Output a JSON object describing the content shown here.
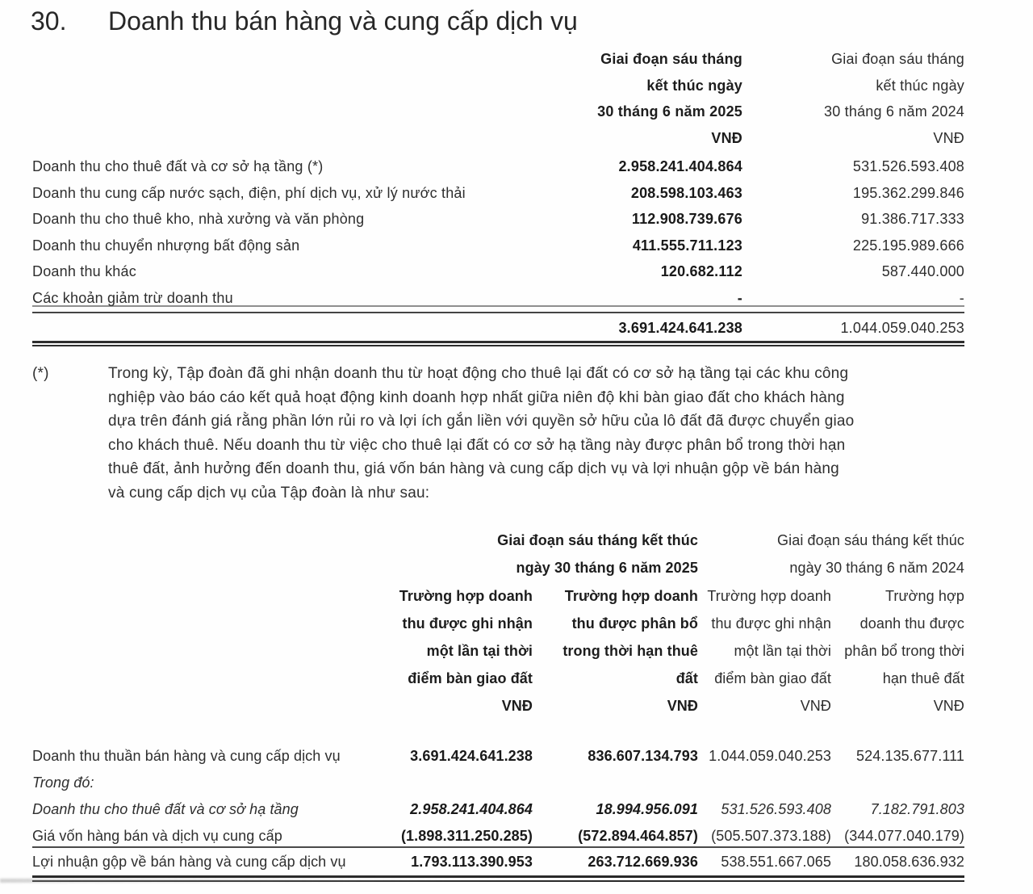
{
  "heading": {
    "number": "30.",
    "title": "Doanh thu bán hàng và cung cấp dịch vụ"
  },
  "table1": {
    "header": {
      "y2025": {
        "lines": [
          "Giai đoạn sáu tháng",
          "kết thúc ngày",
          "30 tháng 6 năm 2025",
          "VNĐ"
        ]
      },
      "y2024": {
        "lines": [
          "Giai đoạn sáu tháng",
          "kết thúc ngày",
          "30 tháng 6 năm 2024",
          "VNĐ"
        ]
      }
    },
    "rows": [
      {
        "label": "Doanh thu cho thuê đất và cơ sở hạ tầng (*)",
        "v2025": "2.958.241.404.864",
        "v2024": "531.526.593.408"
      },
      {
        "label": "Doanh thu cung cấp nước sạch, điện, phí dịch vụ, xử lý nước thải",
        "v2025": "208.598.103.463",
        "v2024": "195.362.299.846"
      },
      {
        "label": "Doanh thu cho thuê kho, nhà xưởng và văn phòng",
        "v2025": "112.908.739.676",
        "v2024": "91.386.717.333"
      },
      {
        "label": "Doanh thu chuyển nhượng bất động sản",
        "v2025": "411.555.711.123",
        "v2024": "225.195.989.666"
      },
      {
        "label": "Doanh thu khác",
        "v2025": "120.682.112",
        "v2024": "587.440.000"
      },
      {
        "label": "Các khoản giảm trừ doanh thu",
        "v2025": "-",
        "v2024": "-"
      }
    ],
    "total": {
      "v2025": "3.691.424.641.238",
      "v2024": "1.044.059.040.253"
    }
  },
  "footnote": {
    "marker": "(*)",
    "lines": [
      "Trong kỳ, Tập đoàn đã ghi nhận doanh thu từ hoạt động cho thuê lại đất có cơ sở hạ tầng tại các khu công",
      "nghiệp vào báo cáo kết quả hoạt động kinh doanh hợp nhất giữa niên độ khi bàn giao đất cho khách hàng",
      "dựa trên đánh giá rằng phần lớn rủi ro và lợi ích gắn liền với quyền sở hữu của lô đất đã được chuyển giao",
      "cho khách thuê. Nếu doanh thu từ việc cho thuê lại đất có cơ sở hạ tầng này được phân bổ trong thời hạn",
      "thuê đất, ảnh hưởng đến doanh thu, giá vốn bán hàng và cung cấp dịch vụ và lợi nhuận gộp về bán hàng",
      "và cung cấp dịch vụ của Tập đoàn là như sau:"
    ]
  },
  "table2": {
    "groups": [
      {
        "lines": [
          "Giai đoạn sáu tháng kết thúc",
          "ngày 30 tháng 6 năm 2025"
        ]
      },
      {
        "lines": [
          "Giai đoạn sáu tháng kết thúc",
          "ngày 30 tháng 6 năm 2024"
        ]
      }
    ],
    "columns": [
      {
        "lines": [
          "Trường hợp doanh",
          "thu được ghi nhận",
          "một lần tại thời",
          "điểm bàn giao đất"
        ],
        "currency": "VNĐ"
      },
      {
        "lines": [
          "Trường hợp doanh",
          "thu được phân bổ",
          "trong thời hạn thuê",
          "đất"
        ],
        "currency": "VNĐ"
      },
      {
        "lines": [
          "Trường hợp doanh",
          "thu được ghi nhận",
          "một lần tại thời",
          "điểm bàn giao đất"
        ],
        "currency": "VNĐ"
      },
      {
        "lines": [
          "Trường hợp",
          "doanh thu được",
          "phân bổ trong thời",
          "hạn thuê đất"
        ],
        "currency": "VNĐ"
      }
    ],
    "rows": [
      {
        "label": "Doanh thu thuần bán hàng và cung cấp dịch vụ",
        "values": [
          "3.691.424.641.238",
          "836.607.134.793",
          "1.044.059.040.253",
          "524.135.677.111"
        ]
      },
      {
        "label": "Trong đó:",
        "values": [
          "",
          "",
          "",
          ""
        ]
      },
      {
        "label": "Doanh thu cho thuê đất và cơ sở hạ tầng",
        "values": [
          "2.958.241.404.864",
          "18.994.956.091",
          "531.526.593.408",
          "7.182.791.803"
        ]
      },
      {
        "label": "Giá vốn hàng bán và dịch vụ cung cấp",
        "values": [
          "(1.898.311.250.285)",
          "(572.894.464.857)",
          "(505.507.373.188)",
          "(344.077.040.179)"
        ]
      },
      {
        "label": "Lợi nhuận gộp về bán hàng và cung cấp dịch vụ",
        "values": [
          "1.793.113.390.953",
          "263.712.669.936",
          "538.551.667.065",
          "180.058.636.932"
        ]
      }
    ]
  }
}
